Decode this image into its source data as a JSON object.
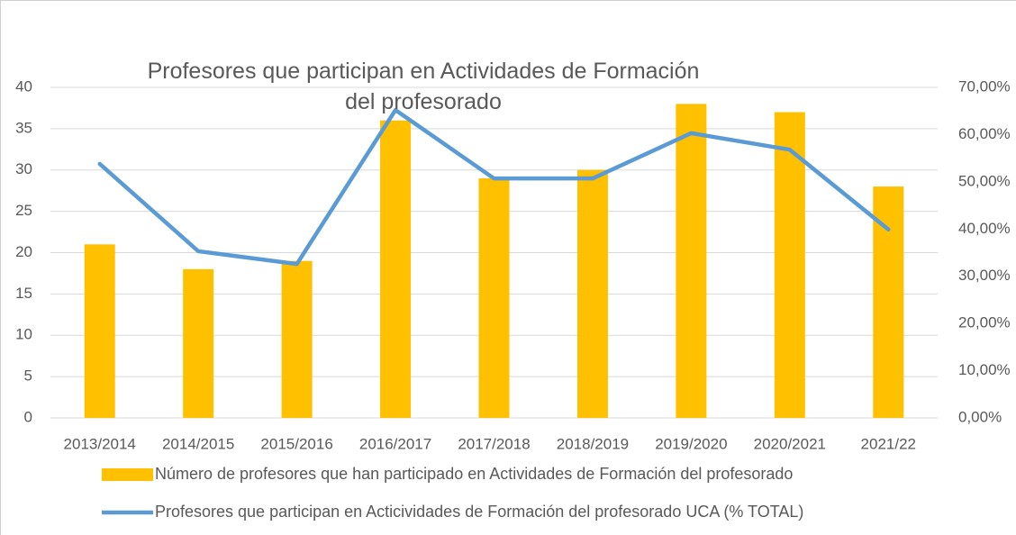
{
  "chart_data": {
    "type": "bar",
    "title": "Profesores que participan en Actividades de Formación del profesorado",
    "categories": [
      "2013/2014",
      "2014/2015",
      "2015/2016",
      "2016/2017",
      "2017/2018",
      "2018/2019",
      "2019/2020",
      "2020/2021",
      "2021/22"
    ],
    "series": [
      {
        "name": "Número de profesores que han participado en Actividades de Formación del profesorado",
        "type": "bar",
        "color": "#ffc000",
        "values": [
          21,
          18,
          19,
          36,
          29,
          30,
          38,
          37,
          28
        ]
      },
      {
        "name": "Profesores que participan en Acticividades de Formación del profesorado UCA (% TOTAL)",
        "type": "line",
        "axis": "y2",
        "color": "#5b9bd5",
        "values": [
          53.8,
          35.3,
          32.6,
          65.2,
          50.7,
          50.7,
          60.3,
          56.8,
          39.9
        ]
      }
    ],
    "ylim": [
      0,
      40
    ],
    "yticks": [
      0,
      5,
      10,
      15,
      20,
      25,
      30,
      35,
      40
    ],
    "y2lim": [
      0,
      70
    ],
    "y2ticks": [
      {
        "value": 0,
        "label": "0,00%"
      },
      {
        "value": 10,
        "label": "10,00%"
      },
      {
        "value": 20,
        "label": "20,00%"
      },
      {
        "value": 30,
        "label": "30,00%"
      },
      {
        "value": 40,
        "label": "40,00%"
      },
      {
        "value": 50,
        "label": "50,00%"
      },
      {
        "value": 60,
        "label": "60,00%"
      },
      {
        "value": 70,
        "label": "70,00%"
      }
    ],
    "grid": true,
    "legend": "bottom"
  }
}
